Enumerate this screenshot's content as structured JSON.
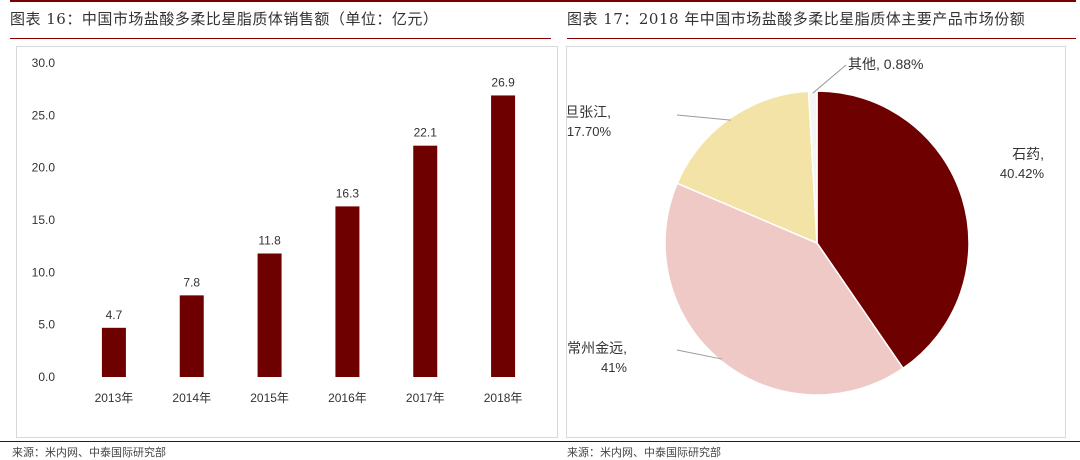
{
  "left_figure": {
    "title": "图表 16：中国市场盐酸多柔比星脂质体销售额（单位：亿元）",
    "source": "来源：米内网、中泰国际研究部"
  },
  "right_figure": {
    "title": "图表 17：2018 年中国市场盐酸多柔比星脂质体主要产品市场份额",
    "source": "来源：米内网、中泰国际研究部"
  },
  "colors": {
    "bar": "#6f0000",
    "title_rule": "#8b0000"
  },
  "chart_data": [
    {
      "type": "bar",
      "categories": [
        "2013年",
        "2014年",
        "2015年",
        "2016年",
        "2017年",
        "2018年"
      ],
      "values": [
        4.7,
        7.8,
        11.8,
        16.3,
        22.1,
        26.9
      ],
      "data_labels": [
        "4.7",
        "7.8",
        "11.8",
        "16.3",
        "22.1",
        "26.9"
      ],
      "ylim": [
        0,
        30
      ],
      "yticks": [
        "0.0",
        "5.0",
        "10.0",
        "15.0",
        "20.0",
        "25.0",
        "30.0"
      ],
      "grid": false,
      "legend": "none"
    },
    {
      "type": "pie",
      "slices": [
        {
          "label": "石药,",
          "pct_label": "40.42%",
          "value": 40.42,
          "color": "#6f0000"
        },
        {
          "label": "常州金远,",
          "pct_label": "41%",
          "value": 41.0,
          "color": "#efc9c6"
        },
        {
          "label": "复旦张江,",
          "pct_label": "17.70%",
          "value": 17.7,
          "color": "#f3e3a6"
        },
        {
          "label": "其他, 0.88%",
          "pct_label": "",
          "value": 0.88,
          "color": "#f5f5f5"
        }
      ],
      "legend": "none"
    }
  ]
}
